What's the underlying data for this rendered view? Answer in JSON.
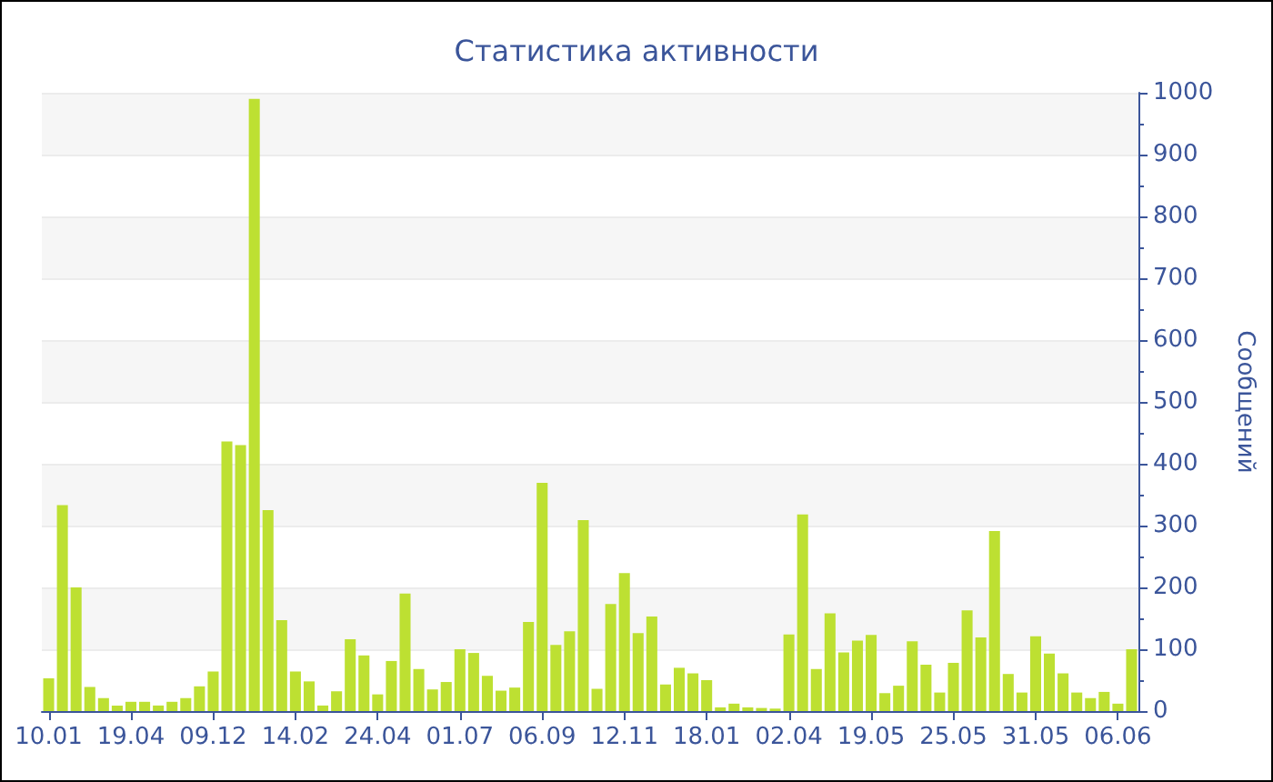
{
  "chart_data": {
    "type": "bar",
    "title": "Статистика активности",
    "ylabel": "Сообщений",
    "categories": [
      "10.01",
      null,
      null,
      null,
      null,
      null,
      "19.04",
      null,
      null,
      null,
      null,
      null,
      "09.12",
      null,
      null,
      null,
      null,
      null,
      "14.02",
      null,
      null,
      null,
      null,
      null,
      "24.04",
      null,
      null,
      null,
      null,
      null,
      "01.07",
      null,
      null,
      null,
      null,
      null,
      "06.09",
      null,
      null,
      null,
      null,
      null,
      "12.11",
      null,
      null,
      null,
      null,
      null,
      "18.01",
      null,
      null,
      null,
      null,
      null,
      "02.04",
      null,
      null,
      null,
      null,
      null,
      "19.05",
      null,
      null,
      null,
      null,
      null,
      "25.05",
      null,
      null,
      null,
      null,
      null,
      "31.05",
      null,
      null,
      null,
      null,
      null,
      "06.06",
      null
    ],
    "values": [
      53,
      333,
      200,
      39,
      21,
      9,
      15,
      15,
      9,
      15,
      21,
      40,
      64,
      436,
      430,
      990,
      325,
      147,
      64,
      48,
      9,
      32,
      116,
      90,
      27,
      81,
      190,
      68,
      35,
      47,
      100,
      94,
      57,
      33,
      38,
      144,
      369,
      107,
      129,
      309,
      36,
      173,
      223,
      126,
      153,
      43,
      70,
      61,
      50,
      6,
      12,
      6,
      5,
      4,
      124,
      318,
      68,
      158,
      95,
      114,
      123,
      29,
      41,
      113,
      75,
      30,
      78,
      163,
      119,
      291,
      60,
      30,
      121,
      93,
      61,
      30,
      21,
      31,
      12,
      100
    ],
    "color": "#bde032",
    "ylim": [
      0,
      1000
    ],
    "yticks": [
      0,
      100,
      200,
      300,
      400,
      500,
      600,
      700,
      800,
      900,
      1000
    ],
    "grid": "y"
  }
}
